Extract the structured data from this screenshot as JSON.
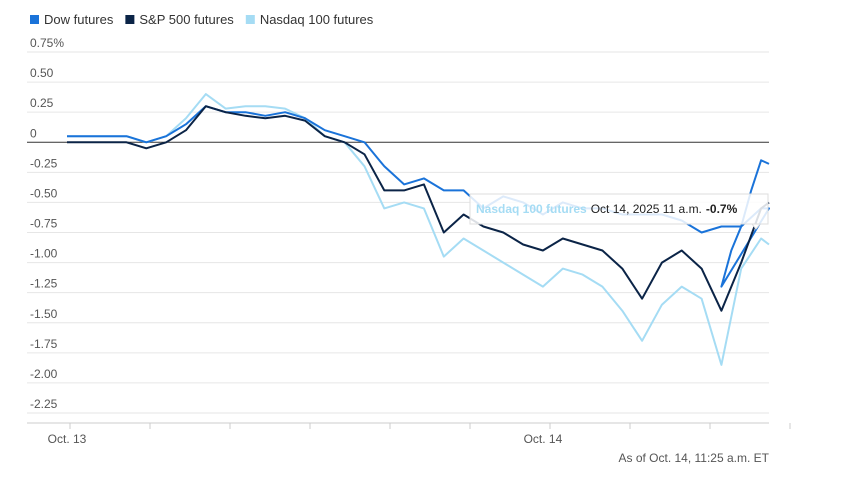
{
  "chart_data": {
    "type": "line",
    "title": "",
    "xlabel": "",
    "ylabel": "",
    "ylim": [
      -2.25,
      0.75
    ],
    "yticks": [
      "0.75%",
      "0.50",
      "0.25",
      "0",
      "-0.25",
      "-0.50",
      "-0.75",
      "-1.00",
      "-1.25",
      "-1.50",
      "-1.75",
      "-2.00",
      "-2.25"
    ],
    "ytick_values": [
      0.75,
      0.5,
      0.25,
      0,
      -0.25,
      -0.5,
      -0.75,
      -1.0,
      -1.25,
      -1.5,
      -1.75,
      -2.0,
      -2.25
    ],
    "xticks": [
      {
        "label": "Oct. 13",
        "x": 0
      },
      {
        "label": "Oct. 14",
        "x": 24
      }
    ],
    "xlim": [
      0,
      35.4
    ],
    "grid": "horizontal",
    "legend_position": "top-left",
    "footnote": "As of Oct. 14, 11:25 a.m. ET",
    "tooltip": {
      "series": "Nasdaq 100 futures",
      "time": "Oct 14, 2025 11 a.m.",
      "value": "-0.7%"
    },
    "series": [
      {
        "name": "Dow futures",
        "color": "#1a73d9",
        "points": [
          [
            0,
            0.05
          ],
          [
            1,
            0.05
          ],
          [
            2,
            0.05
          ],
          [
            3,
            0.05
          ],
          [
            4,
            0.0
          ],
          [
            5,
            0.05
          ],
          [
            6,
            0.15
          ],
          [
            7,
            0.3
          ],
          [
            8,
            0.25
          ],
          [
            9,
            0.25
          ],
          [
            10,
            0.22
          ],
          [
            11,
            0.25
          ],
          [
            12,
            0.2
          ],
          [
            13,
            0.1
          ],
          [
            14,
            0.05
          ],
          [
            15,
            0.0
          ],
          [
            16,
            -0.2
          ],
          [
            17,
            -0.35
          ],
          [
            18,
            -0.3
          ],
          [
            19,
            -0.4
          ],
          [
            20,
            -0.4
          ],
          [
            21,
            -0.55
          ],
          [
            22,
            -0.45
          ],
          [
            23,
            -0.5
          ],
          [
            24,
            -0.6
          ],
          [
            25,
            -0.5
          ],
          [
            26,
            -0.55
          ],
          [
            27,
            -0.55
          ],
          [
            28,
            -0.6
          ],
          [
            29,
            -0.6
          ],
          [
            30,
            -0.6
          ],
          [
            31,
            -0.65
          ],
          [
            32,
            -0.75
          ],
          [
            33,
            -0.7
          ],
          [
            34,
            -0.7
          ],
          [
            35,
            -0.55
          ],
          [
            35.4,
            -0.55
          ],
          [
            33,
            -1.2
          ],
          [
            33.5,
            -0.9
          ],
          [
            34,
            -0.7
          ],
          [
            34.5,
            -0.4
          ],
          [
            35,
            -0.15
          ],
          [
            35.4,
            -0.18
          ]
        ]
      },
      {
        "name": "S&P 500 futures",
        "color": "#0b2447",
        "points": [
          [
            0,
            0.0
          ],
          [
            1,
            0.0
          ],
          [
            2,
            0.0
          ],
          [
            3,
            0.0
          ],
          [
            4,
            -0.05
          ],
          [
            5,
            0.0
          ],
          [
            6,
            0.1
          ],
          [
            7,
            0.3
          ],
          [
            8,
            0.25
          ],
          [
            9,
            0.22
          ],
          [
            10,
            0.2
          ],
          [
            11,
            0.22
          ],
          [
            12,
            0.18
          ],
          [
            13,
            0.05
          ],
          [
            14,
            0.0
          ],
          [
            15,
            -0.1
          ],
          [
            16,
            -0.4
          ],
          [
            17,
            -0.4
          ],
          [
            18,
            -0.35
          ],
          [
            19,
            -0.75
          ],
          [
            20,
            -0.6
          ],
          [
            21,
            -0.7
          ],
          [
            22,
            -0.75
          ],
          [
            23,
            -0.85
          ],
          [
            24,
            -0.9
          ],
          [
            25,
            -0.8
          ],
          [
            26,
            -0.85
          ],
          [
            27,
            -0.9
          ],
          [
            28,
            -1.05
          ],
          [
            29,
            -1.3
          ],
          [
            30,
            -1.0
          ],
          [
            31,
            -0.9
          ],
          [
            32,
            -1.05
          ],
          [
            33,
            -1.4
          ],
          [
            34,
            -1.0
          ],
          [
            35,
            -0.55
          ],
          [
            35.4,
            -0.5
          ]
        ]
      },
      {
        "name": "Nasdaq 100 futures",
        "color": "#a5dcf4",
        "points": [
          [
            0,
            0.05
          ],
          [
            1,
            0.05
          ],
          [
            2,
            0.05
          ],
          [
            3,
            0.05
          ],
          [
            4,
            0.0
          ],
          [
            5,
            0.05
          ],
          [
            6,
            0.2
          ],
          [
            7,
            0.4
          ],
          [
            8,
            0.28
          ],
          [
            9,
            0.3
          ],
          [
            10,
            0.3
          ],
          [
            11,
            0.28
          ],
          [
            12,
            0.2
          ],
          [
            13,
            0.05
          ],
          [
            14,
            0.0
          ],
          [
            15,
            -0.2
          ],
          [
            16,
            -0.55
          ],
          [
            17,
            -0.5
          ],
          [
            18,
            -0.55
          ],
          [
            19,
            -0.95
          ],
          [
            20,
            -0.8
          ],
          [
            21,
            -0.9
          ],
          [
            22,
            -1.0
          ],
          [
            23,
            -1.1
          ],
          [
            24,
            -1.2
          ],
          [
            25,
            -1.05
          ],
          [
            26,
            -1.1
          ],
          [
            27,
            -1.2
          ],
          [
            28,
            -1.4
          ],
          [
            29,
            -1.65
          ],
          [
            30,
            -1.35
          ],
          [
            31,
            -1.2
          ],
          [
            32,
            -1.3
          ],
          [
            33,
            -1.85
          ],
          [
            34,
            -1.05
          ],
          [
            35,
            -0.8
          ],
          [
            35.4,
            -0.85
          ]
        ]
      }
    ]
  }
}
